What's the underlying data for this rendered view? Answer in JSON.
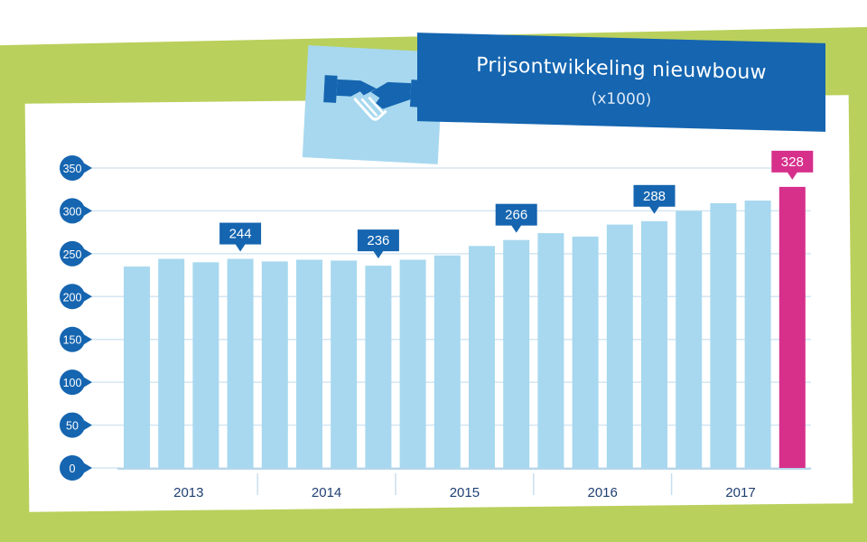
{
  "header": {
    "title": "Prijsontwikkeling nieuwbouw",
    "subtitle": "(x1000)"
  },
  "icons": {
    "header_icon": "handshake-icon"
  },
  "colors": {
    "background_green": "#b9d05c",
    "banner_blue": "#1565b0",
    "bar_light_blue": "#a7d8ef",
    "highlight_magenta": "#d6308b",
    "axis_blue": "#1565b0"
  },
  "chart_data": {
    "type": "bar",
    "title": "Prijsontwikkeling nieuwbouw",
    "subtitle": "(x1000)",
    "ylim": [
      0,
      350
    ],
    "yticks": [
      0,
      50,
      100,
      150,
      200,
      250,
      300,
      350
    ],
    "grid": true,
    "year_groups": [
      {
        "label": "2013",
        "bars": 4
      },
      {
        "label": "2014",
        "bars": 4
      },
      {
        "label": "2015",
        "bars": 4
      },
      {
        "label": "2016",
        "bars": 4
      },
      {
        "label": "2017",
        "bars": 4
      }
    ],
    "values": [
      235,
      244,
      240,
      244,
      241,
      243,
      242,
      236,
      243,
      248,
      259,
      266,
      274,
      270,
      284,
      288,
      300,
      309,
      312,
      328
    ],
    "highlight_index": 19,
    "callouts": [
      {
        "index": 3,
        "label": "244"
      },
      {
        "index": 7,
        "label": "236"
      },
      {
        "index": 11,
        "label": "266"
      },
      {
        "index": 15,
        "label": "288"
      },
      {
        "index": 19,
        "label": "328"
      }
    ]
  }
}
